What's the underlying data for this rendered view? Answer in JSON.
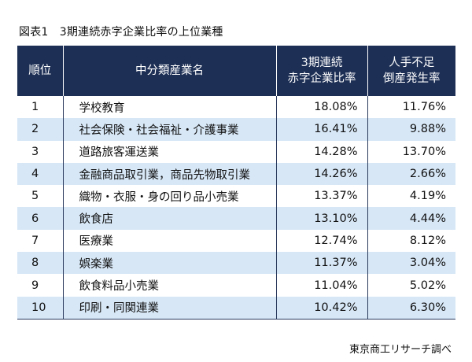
{
  "caption": "図表1　3期連続赤字企業比率の上位業種",
  "table": {
    "headers": {
      "rank": "順位",
      "industry": "中分類産業名",
      "deficit_ratio_line1": "3期連続",
      "deficit_ratio_line2": "赤字企業比率",
      "labor_ratio_line1": "人手不足",
      "labor_ratio_line2": "倒産発生率"
    },
    "rows": [
      {
        "rank": "1",
        "industry": "学校教育",
        "deficit_ratio": "18.08%",
        "labor_ratio": "11.76%"
      },
      {
        "rank": "2",
        "industry": "社会保険・社会福祉・介護事業",
        "deficit_ratio": "16.41%",
        "labor_ratio": "9.88%"
      },
      {
        "rank": "3",
        "industry": "道路旅客運送業",
        "deficit_ratio": "14.28%",
        "labor_ratio": "13.70%"
      },
      {
        "rank": "4",
        "industry": "金融商品取引業，商品先物取引業",
        "deficit_ratio": "14.26%",
        "labor_ratio": "2.66%"
      },
      {
        "rank": "5",
        "industry": "織物・衣服・身の回り品小売業",
        "deficit_ratio": "13.37%",
        "labor_ratio": "4.19%"
      },
      {
        "rank": "6",
        "industry": "飲食店",
        "deficit_ratio": "13.10%",
        "labor_ratio": "4.44%"
      },
      {
        "rank": "7",
        "industry": "医療業",
        "deficit_ratio": "12.74%",
        "labor_ratio": "8.12%"
      },
      {
        "rank": "8",
        "industry": "娯楽業",
        "deficit_ratio": "11.37%",
        "labor_ratio": "3.04%"
      },
      {
        "rank": "9",
        "industry": "飲食料品小売業",
        "deficit_ratio": "11.04%",
        "labor_ratio": "5.02%"
      },
      {
        "rank": "10",
        "industry": "印刷・同関連業",
        "deficit_ratio": "10.42%",
        "labor_ratio": "6.30%"
      }
    ]
  },
  "source": "東京商工リサーチ調べ",
  "colors": {
    "header_bg": "#1d2f55",
    "stripe_bg": "#d7e7f6"
  }
}
